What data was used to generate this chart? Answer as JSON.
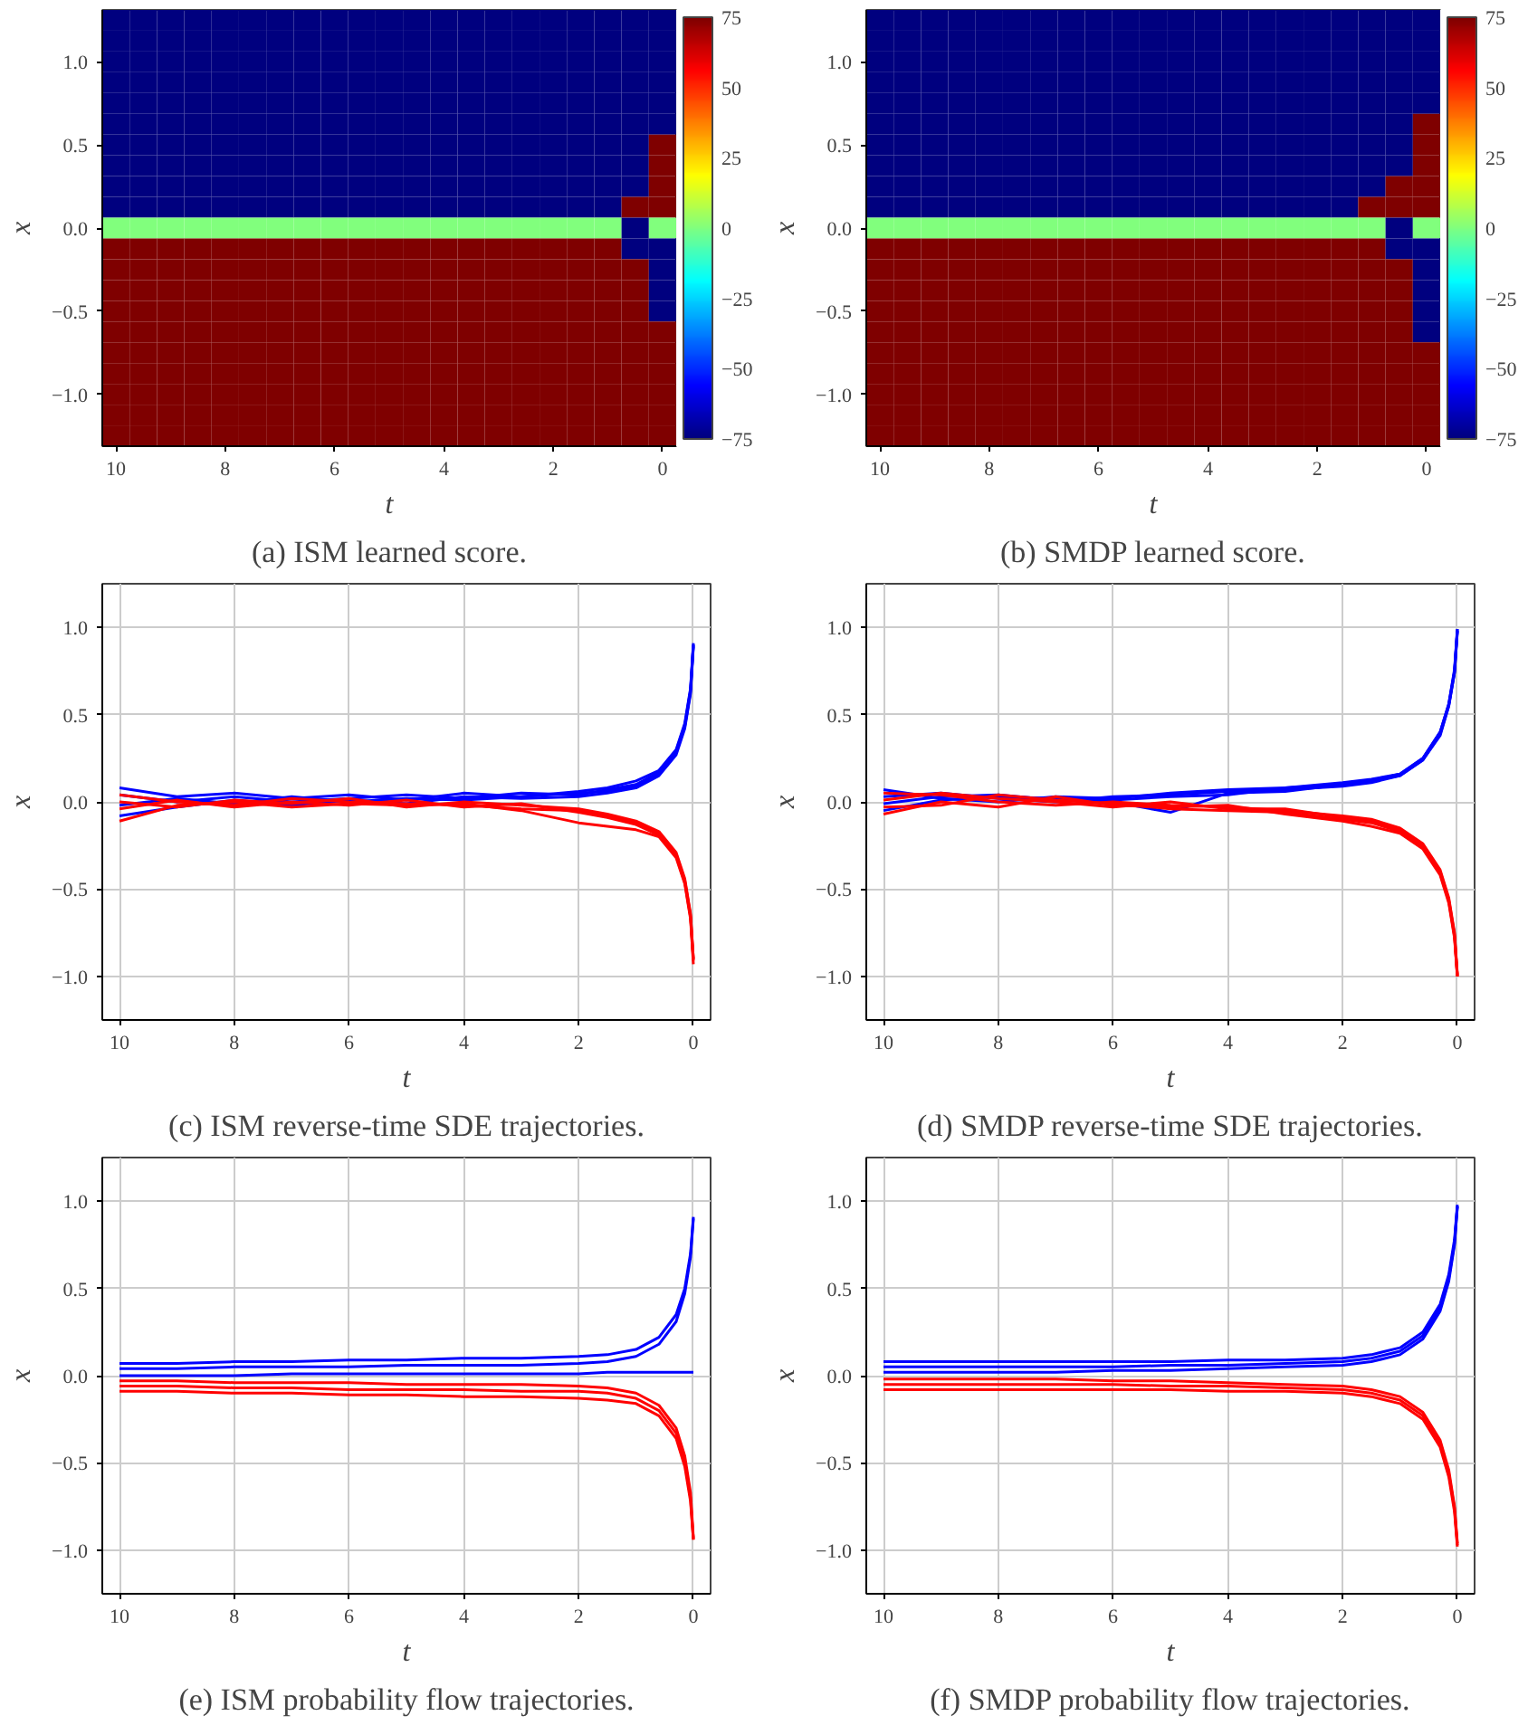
{
  "chart_data": [
    {
      "type": "heatmap",
      "xlabel": "t",
      "ylabel": "x",
      "annotations": [
        "(a) ISM learned score."
      ],
      "clim": [
        -75,
        75
      ],
      "cticks": [
        {
          "value": -75,
          "label": "−75"
        },
        {
          "value": -50,
          "label": "−50"
        },
        {
          "value": -25,
          "label": "−25"
        },
        0,
        25,
        50,
        75
      ],
      "categories": [
        "10",
        null,
        null,
        null,
        "8",
        null,
        null,
        null,
        "6",
        null,
        null,
        null,
        "4",
        null,
        null,
        null,
        "2",
        null,
        null,
        null,
        "0"
      ],
      "y_categories": [
        null,
        null,
        "1.0",
        null,
        null,
        null,
        "0.5",
        null,
        null,
        null,
        "0.0",
        null,
        null,
        null,
        "−0.5",
        null,
        null,
        null,
        "−1.0",
        null,
        null
      ],
      "cells": [
        [
          -75,
          -75,
          -75,
          -75,
          -75,
          -75,
          -75,
          -75,
          -75,
          -75,
          -75,
          -75,
          -75,
          -75,
          -75,
          -75,
          -75,
          -75,
          -75,
          -75,
          -75
        ],
        [
          -75,
          -75,
          -75,
          -75,
          -75,
          -75,
          -75,
          -75,
          -75,
          -75,
          -75,
          -75,
          -75,
          -75,
          -75,
          -75,
          -75,
          -75,
          -75,
          -75,
          -75
        ],
        [
          -75,
          -75,
          -75,
          -75,
          -75,
          -75,
          -75,
          -75,
          -75,
          -75,
          -75,
          -75,
          -75,
          -75,
          -75,
          -75,
          -75,
          -75,
          -75,
          -75,
          -75
        ],
        [
          -75,
          -75,
          -75,
          -75,
          -75,
          -75,
          -75,
          -75,
          -75,
          -75,
          -75,
          -75,
          -75,
          -75,
          -75,
          -75,
          -75,
          -75,
          -75,
          -75,
          -75
        ],
        [
          -75,
          -75,
          -75,
          -75,
          -75,
          -75,
          -75,
          -75,
          -75,
          -75,
          -75,
          -75,
          -75,
          -75,
          -75,
          -75,
          -75,
          -75,
          -75,
          -75,
          -75
        ],
        [
          -75,
          -75,
          -75,
          -75,
          -75,
          -75,
          -75,
          -75,
          -75,
          -75,
          -75,
          -75,
          -75,
          -75,
          -75,
          -75,
          -75,
          -75,
          -75,
          -75,
          -75
        ],
        [
          -75,
          -75,
          -75,
          -75,
          -75,
          -75,
          -75,
          -75,
          -75,
          -75,
          -75,
          -75,
          -75,
          -75,
          -75,
          -75,
          -75,
          -75,
          -75,
          -75,
          75
        ],
        [
          -75,
          -75,
          -75,
          -75,
          -75,
          -75,
          -75,
          -75,
          -75,
          -75,
          -75,
          -75,
          -75,
          -75,
          -75,
          -75,
          -75,
          -75,
          -75,
          -75,
          75
        ],
        [
          -75,
          -75,
          -75,
          -75,
          -75,
          -75,
          -75,
          -75,
          -75,
          -75,
          -75,
          -75,
          -75,
          -75,
          -75,
          -75,
          -75,
          -75,
          -75,
          -75,
          75
        ],
        [
          -75,
          -75,
          -75,
          -75,
          -75,
          -75,
          -75,
          -75,
          -75,
          -75,
          -75,
          -75,
          -75,
          -75,
          -75,
          -75,
          -75,
          -75,
          -75,
          75,
          75
        ],
        [
          0,
          0,
          0,
          0,
          0,
          0,
          0,
          0,
          0,
          0,
          0,
          0,
          0,
          0,
          0,
          0,
          0,
          0,
          0,
          -75,
          0
        ],
        [
          75,
          75,
          75,
          75,
          75,
          75,
          75,
          75,
          75,
          75,
          75,
          75,
          75,
          75,
          75,
          75,
          75,
          75,
          75,
          -75,
          -75
        ],
        [
          75,
          75,
          75,
          75,
          75,
          75,
          75,
          75,
          75,
          75,
          75,
          75,
          75,
          75,
          75,
          75,
          75,
          75,
          75,
          75,
          -75
        ],
        [
          75,
          75,
          75,
          75,
          75,
          75,
          75,
          75,
          75,
          75,
          75,
          75,
          75,
          75,
          75,
          75,
          75,
          75,
          75,
          75,
          -75
        ],
        [
          75,
          75,
          75,
          75,
          75,
          75,
          75,
          75,
          75,
          75,
          75,
          75,
          75,
          75,
          75,
          75,
          75,
          75,
          75,
          75,
          -75
        ],
        [
          75,
          75,
          75,
          75,
          75,
          75,
          75,
          75,
          75,
          75,
          75,
          75,
          75,
          75,
          75,
          75,
          75,
          75,
          75,
          75,
          75
        ],
        [
          75,
          75,
          75,
          75,
          75,
          75,
          75,
          75,
          75,
          75,
          75,
          75,
          75,
          75,
          75,
          75,
          75,
          75,
          75,
          75,
          75
        ],
        [
          75,
          75,
          75,
          75,
          75,
          75,
          75,
          75,
          75,
          75,
          75,
          75,
          75,
          75,
          75,
          75,
          75,
          75,
          75,
          75,
          75
        ],
        [
          75,
          75,
          75,
          75,
          75,
          75,
          75,
          75,
          75,
          75,
          75,
          75,
          75,
          75,
          75,
          75,
          75,
          75,
          75,
          75,
          75
        ],
        [
          75,
          75,
          75,
          75,
          75,
          75,
          75,
          75,
          75,
          75,
          75,
          75,
          75,
          75,
          75,
          75,
          75,
          75,
          75,
          75,
          75
        ],
        [
          75,
          75,
          75,
          75,
          75,
          75,
          75,
          75,
          75,
          75,
          75,
          75,
          75,
          75,
          75,
          75,
          75,
          75,
          75,
          75,
          75
        ]
      ]
    },
    {
      "type": "heatmap",
      "xlabel": "t",
      "ylabel": "x",
      "annotations": [
        "(b) SMDP learned score."
      ],
      "clim": [
        -75,
        75
      ],
      "cticks": [
        {
          "value": -75,
          "label": "−75"
        },
        {
          "value": -50,
          "label": "−50"
        },
        {
          "value": -25,
          "label": "−25"
        },
        0,
        25,
        50,
        75
      ],
      "categories": [
        "10",
        null,
        null,
        null,
        "8",
        null,
        null,
        null,
        "6",
        null,
        null,
        null,
        "4",
        null,
        null,
        null,
        "2",
        null,
        null,
        null,
        "0"
      ],
      "y_categories": [
        null,
        null,
        "1.0",
        null,
        null,
        null,
        "0.5",
        null,
        null,
        null,
        "0.0",
        null,
        null,
        null,
        "−0.5",
        null,
        null,
        null,
        "−1.0",
        null,
        null
      ],
      "cells": [
        [
          -75,
          -75,
          -75,
          -75,
          -75,
          -75,
          -75,
          -75,
          -75,
          -75,
          -75,
          -75,
          -75,
          -75,
          -75,
          -75,
          -75,
          -75,
          -75,
          -75,
          -75
        ],
        [
          -75,
          -75,
          -75,
          -75,
          -75,
          -75,
          -75,
          -75,
          -75,
          -75,
          -75,
          -75,
          -75,
          -75,
          -75,
          -75,
          -75,
          -75,
          -75,
          -75,
          -75
        ],
        [
          -75,
          -75,
          -75,
          -75,
          -75,
          -75,
          -75,
          -75,
          -75,
          -75,
          -75,
          -75,
          -75,
          -75,
          -75,
          -75,
          -75,
          -75,
          -75,
          -75,
          -75
        ],
        [
          -75,
          -75,
          -75,
          -75,
          -75,
          -75,
          -75,
          -75,
          -75,
          -75,
          -75,
          -75,
          -75,
          -75,
          -75,
          -75,
          -75,
          -75,
          -75,
          -75,
          -75
        ],
        [
          -75,
          -75,
          -75,
          -75,
          -75,
          -75,
          -75,
          -75,
          -75,
          -75,
          -75,
          -75,
          -75,
          -75,
          -75,
          -75,
          -75,
          -75,
          -75,
          -75,
          -75
        ],
        [
          -75,
          -75,
          -75,
          -75,
          -75,
          -75,
          -75,
          -75,
          -75,
          -75,
          -75,
          -75,
          -75,
          -75,
          -75,
          -75,
          -75,
          -75,
          -75,
          -75,
          75
        ],
        [
          -75,
          -75,
          -75,
          -75,
          -75,
          -75,
          -75,
          -75,
          -75,
          -75,
          -75,
          -75,
          -75,
          -75,
          -75,
          -75,
          -75,
          -75,
          -75,
          -75,
          75
        ],
        [
          -75,
          -75,
          -75,
          -75,
          -75,
          -75,
          -75,
          -75,
          -75,
          -75,
          -75,
          -75,
          -75,
          -75,
          -75,
          -75,
          -75,
          -75,
          -75,
          -75,
          75
        ],
        [
          -75,
          -75,
          -75,
          -75,
          -75,
          -75,
          -75,
          -75,
          -75,
          -75,
          -75,
          -75,
          -75,
          -75,
          -75,
          -75,
          -75,
          -75,
          -75,
          75,
          75
        ],
        [
          -75,
          -75,
          -75,
          -75,
          -75,
          -75,
          -75,
          -75,
          -75,
          -75,
          -75,
          -75,
          -75,
          -75,
          -75,
          -75,
          -75,
          -75,
          75,
          75,
          75
        ],
        [
          0,
          0,
          0,
          0,
          0,
          0,
          0,
          0,
          0,
          0,
          0,
          0,
          0,
          0,
          0,
          0,
          0,
          0,
          0,
          -75,
          0
        ],
        [
          75,
          75,
          75,
          75,
          75,
          75,
          75,
          75,
          75,
          75,
          75,
          75,
          75,
          75,
          75,
          75,
          75,
          75,
          75,
          -75,
          -75
        ],
        [
          75,
          75,
          75,
          75,
          75,
          75,
          75,
          75,
          75,
          75,
          75,
          75,
          75,
          75,
          75,
          75,
          75,
          75,
          75,
          75,
          -75
        ],
        [
          75,
          75,
          75,
          75,
          75,
          75,
          75,
          75,
          75,
          75,
          75,
          75,
          75,
          75,
          75,
          75,
          75,
          75,
          75,
          75,
          -75
        ],
        [
          75,
          75,
          75,
          75,
          75,
          75,
          75,
          75,
          75,
          75,
          75,
          75,
          75,
          75,
          75,
          75,
          75,
          75,
          75,
          75,
          -75
        ],
        [
          75,
          75,
          75,
          75,
          75,
          75,
          75,
          75,
          75,
          75,
          75,
          75,
          75,
          75,
          75,
          75,
          75,
          75,
          75,
          75,
          -75
        ],
        [
          75,
          75,
          75,
          75,
          75,
          75,
          75,
          75,
          75,
          75,
          75,
          75,
          75,
          75,
          75,
          75,
          75,
          75,
          75,
          75,
          75
        ],
        [
          75,
          75,
          75,
          75,
          75,
          75,
          75,
          75,
          75,
          75,
          75,
          75,
          75,
          75,
          75,
          75,
          75,
          75,
          75,
          75,
          75
        ],
        [
          75,
          75,
          75,
          75,
          75,
          75,
          75,
          75,
          75,
          75,
          75,
          75,
          75,
          75,
          75,
          75,
          75,
          75,
          75,
          75,
          75
        ],
        [
          75,
          75,
          75,
          75,
          75,
          75,
          75,
          75,
          75,
          75,
          75,
          75,
          75,
          75,
          75,
          75,
          75,
          75,
          75,
          75,
          75
        ],
        [
          75,
          75,
          75,
          75,
          75,
          75,
          75,
          75,
          75,
          75,
          75,
          75,
          75,
          75,
          75,
          75,
          75,
          75,
          75,
          75,
          75
        ]
      ]
    },
    {
      "type": "line",
      "xlabel": "t",
      "ylabel": "x",
      "annotations": [
        "(c) ISM reverse-time SDE trajectories."
      ],
      "xlim": [
        10.3,
        -0.3
      ],
      "xticks": [
        10,
        8,
        6,
        4,
        2,
        0
      ],
      "ylim": [
        -1.25,
        1.25
      ],
      "yticks": [
        {
          "value": -1.0,
          "label": "−1.0"
        },
        {
          "value": -0.5,
          "label": "−0.5"
        },
        {
          "value": 0.0,
          "label": "0.0"
        },
        {
          "value": 0.5,
          "label": "0.5"
        },
        {
          "value": 1.0,
          "label": "1.0"
        }
      ],
      "grid": true,
      "x": [
        10,
        9,
        8,
        7,
        6,
        5,
        4,
        3,
        2,
        1.5,
        1,
        0.6,
        0.3,
        0.15,
        0.05,
        0
      ],
      "series": [
        {
          "color": "#0000ff",
          "values": [
            0.08,
            0.03,
            0.05,
            0.02,
            0.04,
            0.01,
            0.05,
            0.03,
            0.06,
            0.08,
            0.12,
            0.18,
            0.3,
            0.45,
            0.65,
            0.91
          ]
        },
        {
          "color": "#0000ff",
          "values": [
            0.04,
            0.0,
            0.03,
            0.0,
            0.02,
            0.04,
            0.02,
            0.05,
            0.04,
            0.07,
            0.1,
            0.17,
            0.29,
            0.44,
            0.64,
            0.9
          ]
        },
        {
          "color": "#0000ff",
          "values": [
            -0.02,
            0.02,
            -0.01,
            0.03,
            0.0,
            0.02,
            0.01,
            0.03,
            0.05,
            0.06,
            0.09,
            0.16,
            0.28,
            0.43,
            0.63,
            0.9
          ]
        },
        {
          "color": "#0000ff",
          "values": [
            -0.08,
            -0.03,
            0.01,
            -0.02,
            0.01,
            -0.01,
            0.03,
            0.02,
            0.03,
            0.05,
            0.08,
            0.15,
            0.27,
            0.42,
            0.62,
            0.89
          ]
        },
        {
          "color": "#ff0000",
          "values": [
            0.04,
            0.0,
            -0.02,
            0.02,
            0.0,
            -0.01,
            -0.02,
            -0.04,
            -0.05,
            -0.08,
            -0.12,
            -0.18,
            -0.3,
            -0.45,
            -0.65,
            -0.9
          ]
        },
        {
          "color": "#ff0000",
          "values": [
            0.0,
            -0.03,
            0.01,
            -0.01,
            0.02,
            -0.03,
            0.0,
            -0.02,
            -0.04,
            -0.07,
            -0.11,
            -0.17,
            -0.29,
            -0.44,
            -0.64,
            -0.9
          ]
        },
        {
          "color": "#ff0000",
          "values": [
            -0.04,
            0.01,
            -0.03,
            0.0,
            -0.02,
            0.01,
            -0.03,
            -0.01,
            -0.06,
            -0.09,
            -0.13,
            -0.19,
            -0.31,
            -0.46,
            -0.66,
            -0.91
          ]
        },
        {
          "color": "#ff0000",
          "values": [
            -0.11,
            -0.02,
            0.0,
            -0.03,
            -0.01,
            -0.02,
            -0.01,
            -0.05,
            -0.12,
            -0.14,
            -0.16,
            -0.2,
            -0.32,
            -0.47,
            -0.67,
            -0.93
          ]
        }
      ]
    },
    {
      "type": "line",
      "xlabel": "t",
      "ylabel": "x",
      "annotations": [
        "(d) SMDP reverse-time SDE trajectories."
      ],
      "xlim": [
        10.3,
        -0.3
      ],
      "xticks": [
        10,
        8,
        6,
        4,
        2,
        0
      ],
      "ylim": [
        -1.25,
        1.25
      ],
      "yticks": [
        {
          "value": -1.0,
          "label": "−1.0"
        },
        {
          "value": -0.5,
          "label": "−0.5"
        },
        {
          "value": 0.0,
          "label": "0.0"
        },
        {
          "value": 0.5,
          "label": "0.5"
        },
        {
          "value": 1.0,
          "label": "1.0"
        }
      ],
      "grid": true,
      "x": [
        10,
        9,
        8,
        7,
        6,
        5,
        4,
        3,
        2,
        1.5,
        1,
        0.6,
        0.3,
        0.15,
        0.05,
        0
      ],
      "series": [
        {
          "color": "#0000ff",
          "values": [
            0.07,
            0.02,
            0.0,
            0.03,
            0.02,
            0.05,
            0.07,
            0.08,
            0.1,
            0.12,
            0.16,
            0.25,
            0.4,
            0.56,
            0.75,
            0.99
          ]
        },
        {
          "color": "#0000ff",
          "values": [
            0.03,
            0.05,
            0.02,
            0.0,
            0.03,
            0.04,
            0.06,
            0.07,
            0.09,
            0.11,
            0.15,
            0.24,
            0.39,
            0.55,
            0.74,
            0.98
          ]
        },
        {
          "color": "#0000ff",
          "values": [
            -0.01,
            0.03,
            0.04,
            0.01,
            0.0,
            -0.06,
            0.05,
            0.06,
            0.1,
            0.12,
            0.15,
            0.24,
            0.38,
            0.55,
            0.74,
            0.98
          ]
        },
        {
          "color": "#0000ff",
          "values": [
            -0.05,
            0.01,
            0.03,
            0.02,
            0.01,
            0.03,
            0.04,
            0.08,
            0.11,
            0.13,
            0.16,
            0.25,
            0.4,
            0.56,
            0.76,
            0.99
          ]
        },
        {
          "color": "#ff0000",
          "values": [
            0.05,
            0.04,
            0.0,
            -0.02,
            0.0,
            -0.02,
            -0.03,
            -0.05,
            -0.08,
            -0.1,
            -0.15,
            -0.24,
            -0.39,
            -0.55,
            -0.75,
            -0.99
          ]
        },
        {
          "color": "#ff0000",
          "values": [
            0.01,
            0.05,
            0.02,
            0.0,
            -0.03,
            0.0,
            -0.04,
            -0.04,
            -0.09,
            -0.11,
            -0.16,
            -0.25,
            -0.4,
            -0.56,
            -0.76,
            -1.0
          ]
        },
        {
          "color": "#ff0000",
          "values": [
            -0.03,
            -0.02,
            0.04,
            0.01,
            -0.01,
            -0.04,
            -0.05,
            -0.06,
            -0.1,
            -0.12,
            -0.17,
            -0.26,
            -0.41,
            -0.57,
            -0.77,
            -1.0
          ]
        },
        {
          "color": "#ff0000",
          "values": [
            -0.07,
            0.0,
            -0.03,
            0.03,
            -0.02,
            -0.03,
            -0.02,
            -0.07,
            -0.11,
            -0.14,
            -0.18,
            -0.27,
            -0.42,
            -0.58,
            -0.78,
            -1.0
          ]
        }
      ]
    },
    {
      "type": "line",
      "xlabel": "t",
      "ylabel": "x",
      "annotations": [
        "(e) ISM probability flow trajectories."
      ],
      "xlim": [
        10.3,
        -0.3
      ],
      "xticks": [
        10,
        8,
        6,
        4,
        2,
        0
      ],
      "ylim": [
        -1.25,
        1.25
      ],
      "yticks": [
        {
          "value": -1.0,
          "label": "−1.0"
        },
        {
          "value": -0.5,
          "label": "−0.5"
        },
        {
          "value": 0.0,
          "label": "0.0"
        },
        {
          "value": 0.5,
          "label": "0.5"
        },
        {
          "value": 1.0,
          "label": "1.0"
        }
      ],
      "grid": true,
      "x": [
        10,
        9,
        8,
        7,
        6,
        5,
        4,
        3,
        2,
        1.5,
        1,
        0.6,
        0.3,
        0.15,
        0.05,
        0
      ],
      "series": [
        {
          "color": "#0000ff",
          "values": [
            0.07,
            0.07,
            0.08,
            0.08,
            0.09,
            0.09,
            0.1,
            0.1,
            0.11,
            0.12,
            0.15,
            0.22,
            0.35,
            0.5,
            0.7,
            0.91
          ]
        },
        {
          "color": "#0000ff",
          "values": [
            0.04,
            0.04,
            0.05,
            0.05,
            0.05,
            0.06,
            0.06,
            0.06,
            0.07,
            0.08,
            0.11,
            0.18,
            0.31,
            0.47,
            0.68,
            0.9
          ]
        },
        {
          "color": "#0000ff",
          "values": [
            0.0,
            0.0,
            0.0,
            0.01,
            0.01,
            0.01,
            0.01,
            0.01,
            0.01,
            0.02,
            0.02,
            0.02,
            0.02,
            0.02,
            0.02,
            0.02
          ]
        },
        {
          "color": "#ff0000",
          "values": [
            -0.03,
            -0.03,
            -0.04,
            -0.04,
            -0.04,
            -0.05,
            -0.05,
            -0.05,
            -0.06,
            -0.07,
            -0.1,
            -0.17,
            -0.3,
            -0.46,
            -0.67,
            -0.93
          ]
        },
        {
          "color": "#ff0000",
          "values": [
            -0.06,
            -0.06,
            -0.07,
            -0.07,
            -0.08,
            -0.08,
            -0.08,
            -0.09,
            -0.09,
            -0.1,
            -0.13,
            -0.2,
            -0.33,
            -0.49,
            -0.7,
            -0.94
          ]
        },
        {
          "color": "#ff0000",
          "values": [
            -0.09,
            -0.09,
            -0.1,
            -0.1,
            -0.11,
            -0.11,
            -0.12,
            -0.12,
            -0.13,
            -0.14,
            -0.16,
            -0.23,
            -0.36,
            -0.52,
            -0.72,
            -0.94
          ]
        }
      ]
    },
    {
      "type": "line",
      "xlabel": "t",
      "ylabel": "x",
      "annotations": [
        "(f) SMDP probability flow trajectories."
      ],
      "xlim": [
        10.3,
        -0.3
      ],
      "xticks": [
        10,
        8,
        6,
        4,
        2,
        0
      ],
      "ylim": [
        -1.25,
        1.25
      ],
      "yticks": [
        {
          "value": -1.0,
          "label": "−1.0"
        },
        {
          "value": -0.5,
          "label": "−0.5"
        },
        {
          "value": 0.0,
          "label": "0.0"
        },
        {
          "value": 0.5,
          "label": "0.5"
        },
        {
          "value": 1.0,
          "label": "1.0"
        }
      ],
      "grid": true,
      "x": [
        10,
        9,
        8,
        7,
        6,
        5,
        4,
        3,
        2,
        1.5,
        1,
        0.6,
        0.3,
        0.15,
        0.05,
        0
      ],
      "series": [
        {
          "color": "#0000ff",
          "values": [
            0.08,
            0.08,
            0.08,
            0.08,
            0.08,
            0.08,
            0.09,
            0.09,
            0.1,
            0.12,
            0.16,
            0.25,
            0.41,
            0.58,
            0.78,
            0.98
          ]
        },
        {
          "color": "#0000ff",
          "values": [
            0.05,
            0.05,
            0.05,
            0.05,
            0.05,
            0.06,
            0.06,
            0.07,
            0.08,
            0.1,
            0.14,
            0.23,
            0.39,
            0.56,
            0.76,
            0.97
          ]
        },
        {
          "color": "#0000ff",
          "values": [
            0.02,
            0.02,
            0.02,
            0.02,
            0.03,
            0.03,
            0.04,
            0.05,
            0.06,
            0.08,
            0.12,
            0.21,
            0.37,
            0.54,
            0.75,
            0.97
          ]
        },
        {
          "color": "#ff0000",
          "values": [
            -0.02,
            -0.02,
            -0.02,
            -0.02,
            -0.03,
            -0.03,
            -0.04,
            -0.05,
            -0.06,
            -0.08,
            -0.12,
            -0.21,
            -0.37,
            -0.54,
            -0.75,
            -0.96
          ]
        },
        {
          "color": "#ff0000",
          "values": [
            -0.05,
            -0.05,
            -0.05,
            -0.05,
            -0.05,
            -0.06,
            -0.06,
            -0.07,
            -0.08,
            -0.1,
            -0.14,
            -0.23,
            -0.39,
            -0.56,
            -0.76,
            -0.97
          ]
        },
        {
          "color": "#ff0000",
          "values": [
            -0.08,
            -0.08,
            -0.08,
            -0.08,
            -0.08,
            -0.08,
            -0.09,
            -0.09,
            -0.1,
            -0.12,
            -0.16,
            -0.25,
            -0.41,
            -0.58,
            -0.78,
            -0.98
          ]
        }
      ]
    }
  ]
}
